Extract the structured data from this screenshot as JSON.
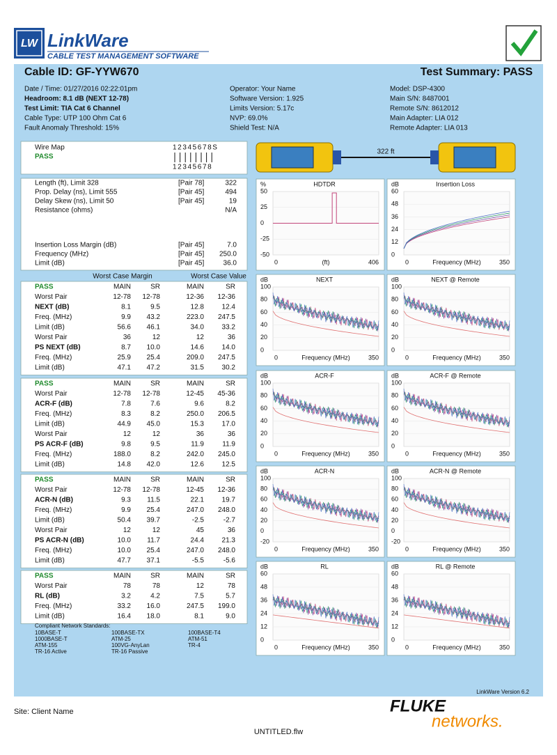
{
  "header": {
    "logo": "LW",
    "brand": "LinkWare",
    "subtitle": "CABLE TEST MANAGEMENT SOFTWARE",
    "cable_id": "Cable ID: GF-YYW670",
    "summary": "Test Summary: PASS"
  },
  "info": {
    "left": [
      "Date / Time: 01/27/2016 02:22:01pm",
      "Headroom: 8.1 dB (NEXT 12-78)",
      "Test Limit: TIA Cat 6  Channel",
      "Cable Type: UTP 100 Ohm Cat 6",
      "Fault Anomaly Threshold: 15%"
    ],
    "middle": [
      "Operator: Your Name",
      "Software Version: 1.925",
      "Limits Version: 5.17c",
      "NVP: 69.0%",
      "Shield Test: N/A"
    ],
    "right": [
      "Model: DSP-4300",
      "Main S/N: 8487001",
      "Remote S/N: 8612012",
      "Main Adapter: LIA 012",
      "Remote Adapter: LIA 013"
    ]
  },
  "wire_map": {
    "label": "Wire Map",
    "status": "PASS",
    "top": "12345678S",
    "bottom": "12345678",
    "length": "322 ft"
  },
  "length_table": {
    "rows": [
      [
        "Length (ft), Limit 328",
        "[Pair 78]",
        "322"
      ],
      [
        "Prop. Delay (ns), Limit 555",
        "[Pair 45]",
        "494"
      ],
      [
        "Delay Skew (ns), Limit 50",
        "[Pair 45]",
        "19"
      ],
      [
        "Resistance (ohms)",
        "N/A"
      ]
    ]
  },
  "il_table": {
    "rows": [
      [
        "Insertion Loss Margin (dB)",
        "[Pair 45]",
        "7.0"
      ],
      [
        "Frequency (MHz)",
        "[Pair 45]",
        "250.0"
      ],
      [
        "Limit (dB)",
        "[Pair 45]",
        "36.0"
      ]
    ]
  },
  "worst_case_headers": [
    "Worst Case Margin",
    "Worst Case Value"
  ],
  "blocks": [
    {
      "rows": [
        [
          "PASS",
          "MAIN",
          "SR",
          "MAIN",
          "SR"
        ],
        [
          "Worst Pair",
          "12-78",
          "12-78",
          "12-36",
          "12-36"
        ],
        [
          "NEXT (dB)",
          "8.1",
          "9.5",
          "12.8",
          "12.4"
        ],
        [
          "Freq. (MHz)",
          "9.9",
          "43.2",
          "223.0",
          "247.5"
        ],
        [
          "Limit (dB)",
          "56.6",
          "46.1",
          "34.0",
          "33.2"
        ],
        [
          "Worst Pair",
          "36",
          "12",
          "12",
          "36"
        ],
        [
          "PS NEXT (dB)",
          "8.7",
          "10.0",
          "14.6",
          "14.0"
        ],
        [
          "Freq. (MHz)",
          "25.9",
          "25.4",
          "209.0",
          "247.5"
        ],
        [
          "Limit (dB)",
          "47.1",
          "47.2",
          "31.5",
          "30.2"
        ]
      ]
    },
    {
      "rows": [
        [
          "PASS",
          "MAIN",
          "SR",
          "MAIN",
          "SR"
        ],
        [
          "Worst Pair",
          "12-78",
          "12-78",
          "12-45",
          "45-36"
        ],
        [
          "ACR-F (dB)",
          "7.8",
          "7.6",
          "9.6",
          "8.2"
        ],
        [
          "Freq. (MHz)",
          "8.3",
          "8.2",
          "250.0",
          "206.5"
        ],
        [
          "Limit (dB)",
          "44.9",
          "45.0",
          "15.3",
          "17.0"
        ],
        [
          "Worst Pair",
          "12",
          "12",
          "36",
          "36"
        ],
        [
          "PS ACR-F (dB)",
          "9.8",
          "9.5",
          "11.9",
          "11.9"
        ],
        [
          "Freq. (MHz)",
          "188.0",
          "8.2",
          "242.0",
          "245.0"
        ],
        [
          "Limit (dB)",
          "14.8",
          "42.0",
          "12.6",
          "12.5"
        ]
      ]
    },
    {
      "rows": [
        [
          "PASS",
          "MAIN",
          "SR",
          "MAIN",
          "SR"
        ],
        [
          "Worst Pair",
          "12-78",
          "12-78",
          "12-45",
          "12-36"
        ],
        [
          "ACR-N (dB)",
          "9.3",
          "11.5",
          "22.1",
          "19.7"
        ],
        [
          "Freq. (MHz)",
          "9.9",
          "25.4",
          "247.0",
          "248.0"
        ],
        [
          "Limit (dB)",
          "50.4",
          "39.7",
          "-2.5",
          "-2.7"
        ],
        [
          "Worst Pair",
          "12",
          "12",
          "45",
          "36"
        ],
        [
          "PS ACR-N (dB)",
          "10.0",
          "11.7",
          "24.4",
          "21.3"
        ],
        [
          "Freq. (MHz)",
          "10.0",
          "25.4",
          "247.0",
          "248.0"
        ],
        [
          "Limit (dB)",
          "47.7",
          "37.1",
          "-5.5",
          "-5.6"
        ]
      ]
    },
    {
      "rows": [
        [
          "PASS",
          "MAIN",
          "SR",
          "MAIN",
          "SR"
        ],
        [
          "Worst Pair",
          "78",
          "78",
          "12",
          "78"
        ],
        [
          "RL (dB)",
          "3.2",
          "4.2",
          "7.5",
          "5.7"
        ],
        [
          "Freq. (MHz)",
          "33.2",
          "16.0",
          "247.5",
          "199.0"
        ],
        [
          "Limit (dB)",
          "16.4",
          "18.0",
          "8.1",
          "9.0"
        ]
      ]
    }
  ],
  "standards": {
    "title": "Compliant Network Standards:",
    "columns": [
      [
        "10BASE-T",
        "1000BASE-T",
        "ATM-155",
        "TR-16 Active"
      ],
      [
        "100BASE-TX",
        "ATM-25",
        "100VG-AnyLan",
        "TR-16 Passive"
      ],
      [
        "100BASE-T4",
        "ATM-51",
        "TR-4"
      ]
    ]
  },
  "graphs": [
    {
      "title": "HDTDR",
      "unit": "%",
      "yticks": [
        50,
        25,
        0,
        -25,
        -50
      ],
      "xlabels": [
        "0",
        "(ft)",
        "406"
      ]
    },
    {
      "title": "Insertion Loss",
      "unit": "dB",
      "yticks": [
        60,
        48,
        36,
        24,
        12,
        0
      ],
      "xlabels": [
        "0",
        "Frequency (MHz)",
        "350"
      ]
    },
    {
      "title": "NEXT",
      "unit": "dB",
      "yticks": [
        100,
        80,
        60,
        40,
        20,
        0
      ],
      "xlabels": [
        "0",
        "Frequency (MHz)",
        "350"
      ]
    },
    {
      "title": "NEXT @ Remote",
      "unit": "dB",
      "yticks": [
        100,
        80,
        60,
        40,
        20,
        0
      ],
      "xlabels": [
        "0",
        "Frequency (MHz)",
        "350"
      ]
    },
    {
      "title": "ACR-F",
      "unit": "dB",
      "yticks": [
        100,
        80,
        60,
        40,
        20,
        0
      ],
      "xlabels": [
        "0",
        "Frequency (MHz)",
        "350"
      ]
    },
    {
      "title": "ACR-F @ Remote",
      "unit": "dB",
      "yticks": [
        100,
        80,
        60,
        40,
        20,
        0
      ],
      "xlabels": [
        "0",
        "Frequency (MHz)",
        "350"
      ]
    },
    {
      "title": "ACR-N",
      "unit": "dB",
      "yticks": [
        100,
        80,
        60,
        40,
        20,
        0,
        -20
      ],
      "xlabels": [
        "0",
        "Frequency (MHz)",
        "350"
      ]
    },
    {
      "title": "ACR-N @ Remote",
      "unit": "dB",
      "yticks": [
        100,
        80,
        60,
        40,
        20,
        0,
        -20
      ],
      "xlabels": [
        "0",
        "Frequency (MHz)",
        "350"
      ]
    },
    {
      "title": "RL",
      "unit": "dB",
      "yticks": [
        60,
        48,
        36,
        24,
        12,
        0
      ],
      "xlabels": [
        "0",
        "Frequency (MHz)",
        "350"
      ]
    },
    {
      "title": "RL @ Remote",
      "unit": "dB",
      "yticks": [
        60,
        48,
        36,
        24,
        12,
        0
      ],
      "xlabels": [
        "0",
        "Frequency (MHz)",
        "350"
      ]
    }
  ],
  "footer": {
    "version": "LinkWare Version  6.2",
    "site": "Site: Client Name",
    "fluke": "FLUKE",
    "networks": "networks.",
    "file": "UNTITLED.flw"
  }
}
